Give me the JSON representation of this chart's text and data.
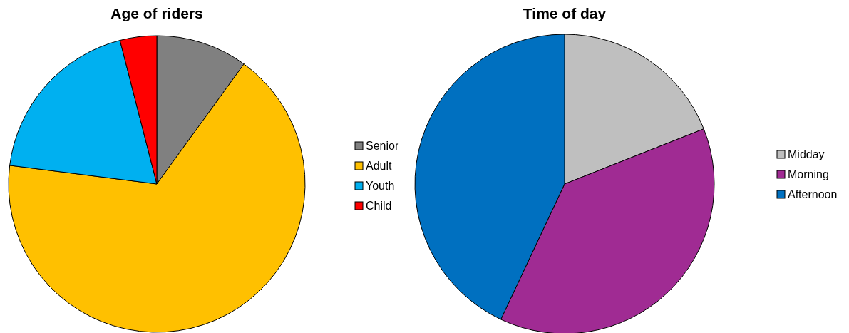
{
  "chart_data": [
    {
      "type": "pie",
      "title": "Age of riders",
      "categories": [
        "Senior",
        "Adult",
        "Youth",
        "Child"
      ],
      "values": [
        10,
        67,
        19,
        4
      ],
      "colors": [
        "#808080",
        "#ffc000",
        "#00b0f0",
        "#ff0000"
      ],
      "legend": "right"
    },
    {
      "type": "pie",
      "title": "Time of day",
      "categories": [
        "Midday",
        "Morning",
        "Afternoon"
      ],
      "values": [
        19,
        38,
        43
      ],
      "colors": [
        "#bfbfbf",
        "#a02b93",
        "#0070c0"
      ],
      "legend": "right"
    }
  ]
}
